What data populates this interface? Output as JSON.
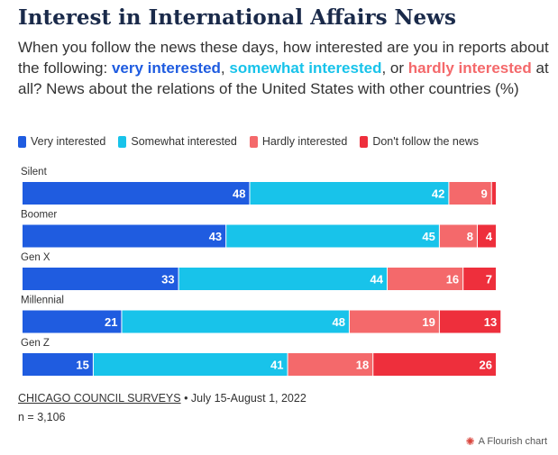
{
  "chart_data": {
    "type": "bar",
    "stacked": true,
    "orientation": "horizontal",
    "title": "Interest in International Affairs News",
    "subtitle": {
      "before": "When you follow the news these days, how interested are you in reports about the following: ",
      "very": "very interested",
      "sep1": ", ",
      "somewhat": "somewhat interested",
      "sep2": ", or ",
      "hardly": "hardly interested",
      "after": " at all? News about the relations of the United States with other countries (%)"
    },
    "categories": [
      "Silent",
      "Boomer",
      "Gen X",
      "Millennial",
      "Gen Z"
    ],
    "series": [
      {
        "name": "Very interested",
        "color": "#1f5ce0",
        "values": [
          48,
          43,
          33,
          21,
          15
        ]
      },
      {
        "name": "Somewhat interested",
        "color": "#18c3ea",
        "values": [
          42,
          45,
          44,
          48,
          41
        ]
      },
      {
        "name": "Hardly interested",
        "color": "#f4696b",
        "values": [
          9,
          8,
          16,
          19,
          18
        ]
      },
      {
        "name": "Don't follow the news",
        "color": "#ee2f3c",
        "values": [
          1,
          4,
          7,
          13,
          26
        ]
      }
    ],
    "xlim": [
      0,
      100
    ],
    "legend_position": "top-left",
    "grid": false
  },
  "source": {
    "name": "CHICAGO COUNCIL SURVEYS",
    "details": " • July 15-August 1, 2022",
    "note": "n = 3,106"
  },
  "credit": {
    "icon": "flourish-logo-icon",
    "label": "A Flourish chart"
  }
}
